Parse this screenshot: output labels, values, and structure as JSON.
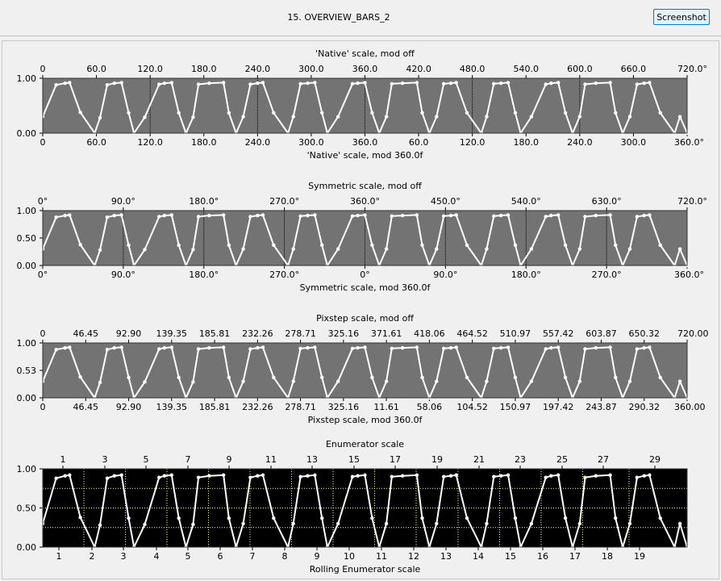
{
  "window": {
    "title": "15. OVERVIEW_BARS_2",
    "screenshot_label": "Screenshot"
  },
  "colors": {
    "panel_gray": "#737373",
    "panel_black": "#000000",
    "trace": "#ffffff",
    "enum_grid": "#ffff99"
  },
  "chart_data": [
    {
      "type": "line",
      "title": "'Native' scale, mod off",
      "xlabel": "'Native' scale, mod 360.0f",
      "xlim": [
        0,
        720
      ],
      "ylim": [
        0,
        1
      ],
      "y_ticks": [
        "1.00",
        "0.00"
      ],
      "top_ticks": [
        "0",
        "60.0",
        "120.0",
        "180.0",
        "240.0",
        "300.0",
        "360.0",
        "420.0",
        "480.0",
        "540.0",
        "600.0",
        "660.0",
        "720.0°"
      ],
      "bottom_ticks": [
        "0",
        "60.0",
        "120.0",
        "180.0",
        "240.0",
        "300.0",
        "360.0",
        "60.0",
        "120.0",
        "180.0",
        "240.0",
        "300.0",
        "360.0°"
      ],
      "vlines": [
        120,
        240,
        360,
        480,
        600
      ],
      "background": "#737373",
      "series": [
        {
          "x": [
            0,
            15,
            25,
            30,
            42,
            58,
            64,
            72,
            80,
            88,
            96,
            102,
            114,
            130,
            136,
            144,
            152,
            160,
            168,
            174,
            186,
            202,
            208,
            216,
            224,
            232,
            240,
            246,
            258,
            274,
            280,
            288,
            296,
            304,
            312,
            318,
            330,
            346,
            352,
            360,
            368,
            376,
            384,
            390,
            402,
            418,
            424,
            432,
            440,
            448,
            456,
            462,
            474,
            490,
            496,
            504,
            512,
            520,
            528,
            534,
            546,
            562,
            568,
            576,
            584,
            592,
            600,
            606,
            618,
            634,
            640,
            648,
            656,
            664,
            672,
            678,
            690,
            706,
            712,
            720
          ],
          "y": [
            0.3,
            0.88,
            0.91,
            0.92,
            0.38,
            0.0,
            0.28,
            0.88,
            0.91,
            0.92,
            0.37,
            0.0,
            0.29,
            0.89,
            0.91,
            0.92,
            0.37,
            0.0,
            0.29,
            0.89,
            0.91,
            0.92,
            0.37,
            0.0,
            0.3,
            0.89,
            0.91,
            0.92,
            0.37,
            0.0,
            0.3,
            0.9,
            0.91,
            0.92,
            0.37,
            0.0,
            0.3,
            0.9,
            0.91,
            0.92,
            0.37,
            0.0,
            0.3,
            0.9,
            0.91,
            0.92,
            0.37,
            0.0,
            0.3,
            0.9,
            0.91,
            0.92,
            0.37,
            0.0,
            0.3,
            0.9,
            0.91,
            0.92,
            0.37,
            0.0,
            0.3,
            0.89,
            0.91,
            0.92,
            0.37,
            0.0,
            0.3,
            0.89,
            0.91,
            0.92,
            0.37,
            0.0,
            0.3,
            0.89,
            0.91,
            0.92,
            0.37,
            0.0,
            0.3,
            0.0
          ]
        }
      ]
    },
    {
      "type": "line",
      "title": "Symmetric scale, mod off",
      "xlabel": "Symmetric scale, mod 360.0f",
      "xlim": [
        0,
        720
      ],
      "ylim": [
        0,
        1
      ],
      "y_ticks": [
        "1.00",
        "0.50",
        "0.00"
      ],
      "top_ticks": [
        "0°",
        "90.0°",
        "180.0°",
        "270.0°",
        "360.0°",
        "450.0°",
        "540.0°",
        "630.0°",
        "720.0°"
      ],
      "bottom_ticks": [
        "0°",
        "90.0°",
        "180.0°",
        "270.0°",
        "0°",
        "90.0°",
        "180.0°",
        "270.0°",
        "360.0°"
      ],
      "vlines": [
        90,
        180,
        270,
        360,
        450,
        540,
        630
      ],
      "background": "#737373",
      "series": [
        {
          "x": [
            0,
            15,
            25,
            30,
            42,
            58,
            64,
            72,
            80,
            88,
            96,
            102,
            114,
            130,
            136,
            144,
            152,
            160,
            168,
            174,
            186,
            202,
            208,
            216,
            224,
            232,
            240,
            246,
            258,
            274,
            280,
            288,
            296,
            304,
            312,
            318,
            330,
            346,
            352,
            360,
            368,
            376,
            384,
            390,
            402,
            418,
            424,
            432,
            440,
            448,
            456,
            462,
            474,
            490,
            496,
            504,
            512,
            520,
            528,
            534,
            546,
            562,
            568,
            576,
            584,
            592,
            600,
            606,
            618,
            634,
            640,
            648,
            656,
            664,
            672,
            678,
            690,
            706,
            712,
            720
          ],
          "y": [
            0.3,
            0.88,
            0.91,
            0.92,
            0.38,
            0.0,
            0.28,
            0.88,
            0.91,
            0.92,
            0.37,
            0.0,
            0.29,
            0.89,
            0.91,
            0.92,
            0.37,
            0.0,
            0.29,
            0.89,
            0.91,
            0.92,
            0.37,
            0.0,
            0.3,
            0.89,
            0.91,
            0.92,
            0.37,
            0.0,
            0.3,
            0.9,
            0.91,
            0.92,
            0.37,
            0.0,
            0.3,
            0.9,
            0.91,
            0.92,
            0.37,
            0.0,
            0.3,
            0.9,
            0.91,
            0.92,
            0.37,
            0.0,
            0.3,
            0.9,
            0.91,
            0.92,
            0.37,
            0.0,
            0.3,
            0.9,
            0.91,
            0.92,
            0.37,
            0.0,
            0.3,
            0.89,
            0.91,
            0.92,
            0.37,
            0.0,
            0.3,
            0.89,
            0.91,
            0.92,
            0.37,
            0.0,
            0.3,
            0.89,
            0.91,
            0.92,
            0.37,
            0.0,
            0.3,
            0.0
          ]
        }
      ]
    },
    {
      "type": "line",
      "title": "Pixstep scale, mod off",
      "xlabel": "Pixstep scale, mod 360.0f",
      "xlim": [
        0,
        720
      ],
      "ylim": [
        0,
        1
      ],
      "y_ticks": [
        "1.00",
        "0.53",
        "0.00"
      ],
      "top_ticks": [
        "0",
        "46.45",
        "92.90",
        "139.35",
        "185.81",
        "232.26",
        "278.71",
        "325.16",
        "371.61",
        "418.06",
        "464.52",
        "510.97",
        "557.42",
        "603.87",
        "650.32",
        "720.00"
      ],
      "bottom_ticks": [
        "0",
        "46.45",
        "92.90",
        "139.35",
        "185.81",
        "232.26",
        "278.71",
        "325.16",
        "11.61",
        "58.06",
        "104.52",
        "150.97",
        "197.42",
        "243.87",
        "290.32",
        "360.00"
      ],
      "vlines": [],
      "background": "#737373",
      "series": [
        {
          "x": [
            0,
            15,
            25,
            30,
            42,
            58,
            64,
            72,
            80,
            88,
            96,
            102,
            114,
            130,
            136,
            144,
            152,
            160,
            168,
            174,
            186,
            202,
            208,
            216,
            224,
            232,
            240,
            246,
            258,
            274,
            280,
            288,
            296,
            304,
            312,
            318,
            330,
            346,
            352,
            360,
            368,
            376,
            384,
            390,
            402,
            418,
            424,
            432,
            440,
            448,
            456,
            462,
            474,
            490,
            496,
            504,
            512,
            520,
            528,
            534,
            546,
            562,
            568,
            576,
            584,
            592,
            600,
            606,
            618,
            634,
            640,
            648,
            656,
            664,
            672,
            678,
            690,
            706,
            712,
            720
          ],
          "y": [
            0.3,
            0.88,
            0.91,
            0.92,
            0.38,
            0.0,
            0.28,
            0.88,
            0.91,
            0.92,
            0.37,
            0.0,
            0.29,
            0.89,
            0.91,
            0.92,
            0.37,
            0.0,
            0.29,
            0.89,
            0.91,
            0.92,
            0.37,
            0.0,
            0.3,
            0.89,
            0.91,
            0.92,
            0.37,
            0.0,
            0.3,
            0.9,
            0.91,
            0.92,
            0.37,
            0.0,
            0.3,
            0.9,
            0.91,
            0.92,
            0.37,
            0.0,
            0.3,
            0.9,
            0.91,
            0.92,
            0.37,
            0.0,
            0.3,
            0.9,
            0.91,
            0.92,
            0.37,
            0.0,
            0.3,
            0.9,
            0.91,
            0.92,
            0.37,
            0.0,
            0.3,
            0.89,
            0.91,
            0.92,
            0.37,
            0.0,
            0.3,
            0.89,
            0.91,
            0.92,
            0.37,
            0.0,
            0.3,
            0.89,
            0.91,
            0.92,
            0.37,
            0.0,
            0.3,
            0.0
          ]
        }
      ]
    },
    {
      "type": "line",
      "title": "Enumerator scale",
      "xlabel": "Rolling Enumerator scale",
      "xlim": [
        0,
        720
      ],
      "ylim": [
        0,
        1
      ],
      "y_ticks": [
        "1.00",
        "0.50",
        "0.00"
      ],
      "top_ticks": [
        "1",
        "3",
        "5",
        "7",
        "9",
        "11",
        "13",
        "15",
        "17",
        "19",
        "21",
        "23",
        "25",
        "27",
        "29"
      ],
      "bottom_ticks": [
        "1",
        "2",
        "3",
        "4",
        "5",
        "6",
        "7",
        "8",
        "9",
        "10",
        "11",
        "12",
        "13",
        "14",
        "15",
        "16",
        "17",
        "18",
        "19"
      ],
      "background": "#000000",
      "grid": true,
      "series": [
        {
          "x": [
            0,
            15,
            25,
            30,
            42,
            58,
            64,
            72,
            80,
            88,
            96,
            102,
            114,
            130,
            136,
            144,
            152,
            160,
            168,
            174,
            186,
            202,
            208,
            216,
            224,
            232,
            240,
            246,
            258,
            274,
            280,
            288,
            296,
            304,
            312,
            318,
            330,
            346,
            352,
            360,
            368,
            376,
            384,
            390,
            402,
            418,
            424,
            432,
            440,
            448,
            456,
            462,
            474,
            490,
            496,
            504,
            512,
            520,
            528,
            534,
            546,
            562,
            568,
            576,
            584,
            592,
            600,
            606,
            618,
            634,
            640,
            648,
            656,
            664,
            672,
            678,
            690,
            706,
            712,
            720
          ],
          "y": [
            0.3,
            0.88,
            0.91,
            0.92,
            0.38,
            0.0,
            0.28,
            0.88,
            0.91,
            0.92,
            0.37,
            0.0,
            0.29,
            0.89,
            0.91,
            0.92,
            0.37,
            0.0,
            0.29,
            0.89,
            0.91,
            0.92,
            0.37,
            0.0,
            0.3,
            0.89,
            0.91,
            0.92,
            0.37,
            0.0,
            0.3,
            0.9,
            0.91,
            0.92,
            0.37,
            0.0,
            0.3,
            0.9,
            0.91,
            0.92,
            0.37,
            0.0,
            0.3,
            0.9,
            0.91,
            0.92,
            0.37,
            0.0,
            0.3,
            0.9,
            0.91,
            0.92,
            0.37,
            0.0,
            0.3,
            0.9,
            0.91,
            0.92,
            0.37,
            0.0,
            0.3,
            0.89,
            0.91,
            0.92,
            0.37,
            0.0,
            0.3,
            0.89,
            0.91,
            0.92,
            0.37,
            0.0,
            0.3,
            0.89,
            0.91,
            0.92,
            0.37,
            0.0,
            0.3,
            0.0
          ]
        }
      ]
    }
  ]
}
